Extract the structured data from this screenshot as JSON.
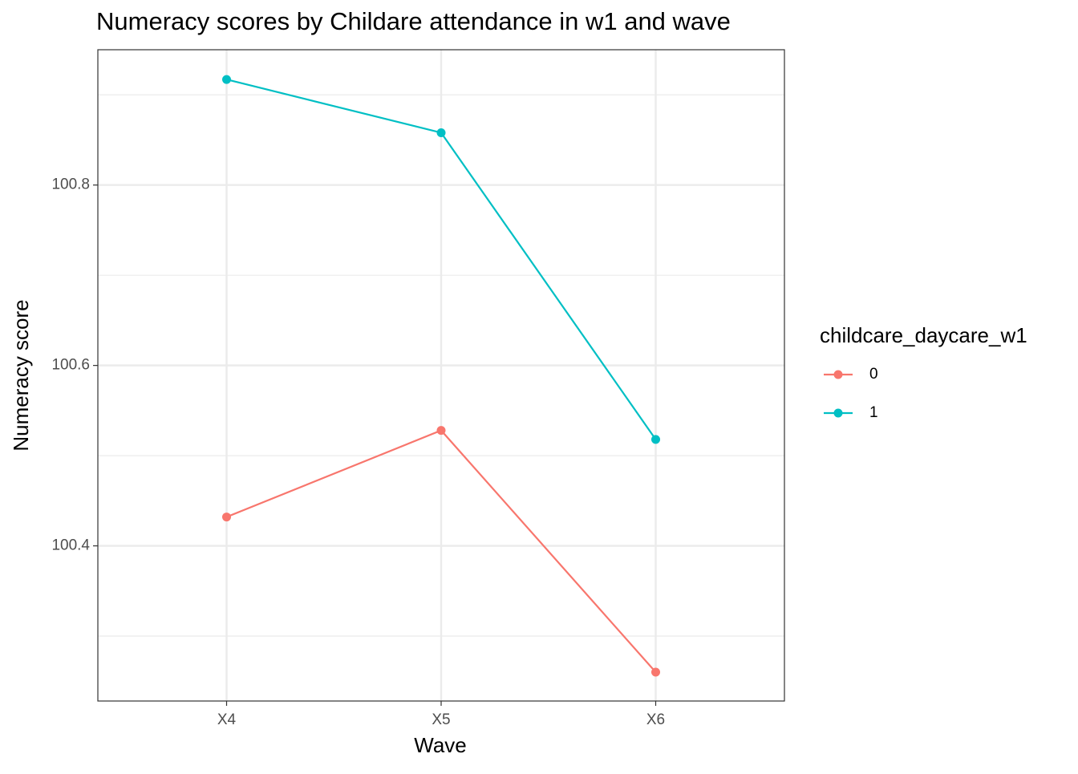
{
  "chart_data": {
    "type": "line",
    "title": "Numeracy scores by Childare attendance in w1 and wave",
    "x_label": "Wave",
    "y_label": "Numeracy score",
    "categories": [
      "X4",
      "X5",
      "X6"
    ],
    "series": [
      {
        "name": "0",
        "color": "#F8766D",
        "values": [
          100.432,
          100.528,
          100.26
        ]
      },
      {
        "name": "1",
        "color": "#00BFC4",
        "values": [
          100.917,
          100.858,
          100.518
        ]
      }
    ],
    "ylim": [
      100.228,
      100.95
    ],
    "yticks": [
      100.4,
      100.6,
      100.8
    ],
    "y_minor_ticks": [
      100.3,
      100.5,
      100.7,
      100.9
    ],
    "grid": true,
    "legend_title": "childcare_daycare_w1",
    "legend_position": "right"
  }
}
